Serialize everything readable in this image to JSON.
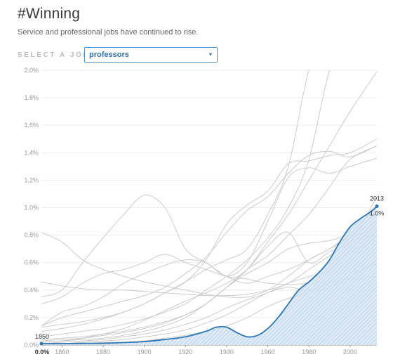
{
  "page": {
    "title": "#Winning",
    "subtitle": "Service and professional jobs have continued to rise."
  },
  "selector": {
    "label": "SELECT A JOB:",
    "value": "professors",
    "caret": "▾"
  },
  "colors": {
    "highlight": "#2f76b3",
    "highlight_fill": "#2f76b3",
    "background_lines": "#cccccc",
    "grid": "#eeeeee"
  },
  "chart_data": {
    "type": "line",
    "ylim": [
      0,
      2.0
    ],
    "xlim": [
      1850,
      2013
    ],
    "y_ticks": [
      "0.0%",
      "0.2%",
      "0.4%",
      "0.6%",
      "0.8%",
      "1.0%",
      "1.2%",
      "1.4%",
      "1.6%",
      "1.8%",
      "2.0%"
    ],
    "x_ticks": [
      "1860",
      "1880",
      "1900",
      "1920",
      "1940",
      "1960",
      "1980",
      "2000"
    ],
    "grid": true,
    "highlight": {
      "name": "professors",
      "x": [
        1850,
        1860,
        1870,
        1880,
        1890,
        1900,
        1910,
        1920,
        1930,
        1935,
        1940,
        1945,
        1950,
        1955,
        1960,
        1965,
        1970,
        1975,
        1980,
        1985,
        1990,
        1995,
        2000,
        2005,
        2010,
        2013
      ],
      "y": [
        0.01,
        0.01,
        0.012,
        0.013,
        0.018,
        0.025,
        0.04,
        0.06,
        0.1,
        0.13,
        0.13,
        0.09,
        0.06,
        0.07,
        0.12,
        0.2,
        0.3,
        0.4,
        0.46,
        0.53,
        0.62,
        0.75,
        0.86,
        0.92,
        0.97,
        1.01
      ],
      "start_label": "1850",
      "start_value_label": "0.0%",
      "end_label": "2013",
      "end_value_label": "1.0%"
    },
    "background_series": [
      {
        "x": [
          1850,
          1860,
          1870,
          1880,
          1890,
          1900,
          1910,
          1920,
          1930,
          1940,
          1950,
          1960,
          1970,
          1980,
          1990,
          2000,
          2013
        ],
        "y": [
          0.82,
          0.75,
          0.62,
          0.55,
          0.5,
          0.46,
          0.43,
          0.4,
          0.37,
          0.35,
          0.35,
          0.4,
          0.5,
          0.62,
          0.7,
          0.8,
          0.9
        ]
      },
      {
        "x": [
          1850,
          1860,
          1870,
          1880,
          1890,
          1900,
          1910,
          1920,
          1930,
          1940,
          1950,
          1960,
          1970,
          1980,
          1990,
          2000,
          2013
        ],
        "y": [
          0.46,
          0.43,
          0.41,
          0.4,
          0.4,
          0.39,
          0.38,
          0.37,
          0.36,
          0.36,
          0.37,
          0.4,
          0.45,
          0.55,
          0.65,
          0.75,
          0.8
        ]
      },
      {
        "x": [
          1850,
          1860,
          1870,
          1880,
          1890,
          1900,
          1910,
          1920,
          1930,
          1940,
          1950,
          1960,
          1970,
          1980,
          1990,
          2000,
          2013
        ],
        "y": [
          0.35,
          0.4,
          0.6,
          0.78,
          0.95,
          1.09,
          1.0,
          0.7,
          0.6,
          0.5,
          0.45,
          0.5,
          0.55,
          0.62,
          0.7,
          0.78,
          0.85
        ]
      },
      {
        "x": [
          1850,
          1860,
          1870,
          1880,
          1890,
          1900,
          1910,
          1920,
          1930,
          1940,
          1950,
          1960,
          1970,
          1980,
          1990,
          2000,
          2013
        ],
        "y": [
          0.14,
          0.24,
          0.28,
          0.35,
          0.45,
          0.52,
          0.58,
          0.62,
          0.6,
          0.5,
          0.6,
          0.9,
          1.22,
          1.29,
          1.25,
          1.3,
          1.36
        ]
      },
      {
        "x": [
          1850,
          1860,
          1870,
          1880,
          1890,
          1900,
          1910,
          1920,
          1930,
          1940,
          1950,
          1960,
          1970,
          1980,
          1990,
          2000,
          2013
        ],
        "y": [
          0.14,
          0.2,
          0.24,
          0.28,
          0.32,
          0.36,
          0.42,
          0.52,
          0.64,
          0.82,
          0.98,
          1.08,
          1.25,
          1.38,
          1.41,
          1.37,
          1.45
        ]
      },
      {
        "x": [
          1850,
          1860,
          1870,
          1880,
          1890,
          1900,
          1910,
          1920,
          1930,
          1940,
          1950,
          1960,
          1970,
          1980,
          1990,
          2000,
          2013
        ],
        "y": [
          0.1,
          0.12,
          0.15,
          0.19,
          0.24,
          0.3,
          0.38,
          0.46,
          0.62,
          0.88,
          1.02,
          1.12,
          1.32,
          1.34,
          1.38,
          1.4,
          1.5
        ]
      },
      {
        "x": [
          1850,
          1860,
          1870,
          1880,
          1890,
          1900,
          1910,
          1920,
          1930,
          1940,
          1950,
          1960,
          1970,
          1980,
          1990,
          2000,
          2013
        ],
        "y": [
          0.13,
          0.15,
          0.17,
          0.2,
          0.24,
          0.3,
          0.38,
          0.46,
          0.55,
          0.62,
          0.7,
          0.95,
          1.3,
          2.0,
          2.3,
          2.3,
          2.3
        ]
      },
      {
        "x": [
          1850,
          1860,
          1870,
          1880,
          1890,
          1900,
          1910,
          1920,
          1930,
          1940,
          1950,
          1960,
          1970,
          1980,
          1990,
          2000,
          2013
        ],
        "y": [
          0.06,
          0.08,
          0.1,
          0.12,
          0.15,
          0.19,
          0.24,
          0.3,
          0.4,
          0.5,
          0.62,
          0.78,
          1.0,
          1.35,
          2.0,
          2.3,
          2.3
        ]
      },
      {
        "x": [
          1850,
          1860,
          1870,
          1880,
          1890,
          1900,
          1910,
          1920,
          1930,
          1940,
          1950,
          1960,
          1970,
          1980,
          1990,
          2000,
          2013
        ],
        "y": [
          0.04,
          0.05,
          0.06,
          0.08,
          0.1,
          0.13,
          0.17,
          0.22,
          0.3,
          0.42,
          0.55,
          0.75,
          0.95,
          1.2,
          1.45,
          1.7,
          1.99
        ]
      },
      {
        "x": [
          1850,
          1860,
          1870,
          1880,
          1890,
          1900,
          1910,
          1920,
          1930,
          1940,
          1950,
          1960,
          1970,
          1980,
          1990,
          2000,
          2013
        ],
        "y": [
          0.03,
          0.04,
          0.05,
          0.07,
          0.09,
          0.12,
          0.16,
          0.22,
          0.3,
          0.42,
          0.55,
          0.65,
          0.8,
          0.95,
          1.15,
          1.35,
          1.45
        ]
      },
      {
        "x": [
          1850,
          1860,
          1870,
          1880,
          1890,
          1900,
          1910,
          1920,
          1930,
          1940,
          1950,
          1960,
          1970,
          1980,
          1990,
          2000,
          2013
        ],
        "y": [
          0.02,
          0.03,
          0.04,
          0.05,
          0.07,
          0.1,
          0.14,
          0.2,
          0.3,
          0.42,
          0.52,
          0.6,
          0.7,
          0.74,
          0.76,
          0.8,
          0.8
        ]
      },
      {
        "x": [
          1850,
          1860,
          1870,
          1880,
          1890,
          1900,
          1910,
          1920,
          1930,
          1940,
          1950,
          1960,
          1970,
          1980,
          1990,
          2000,
          2013
        ],
        "y": [
          0.02,
          0.03,
          0.05,
          0.08,
          0.12,
          0.18,
          0.25,
          0.32,
          0.38,
          0.45,
          0.55,
          0.72,
          0.82,
          0.6,
          0.68,
          0.75,
          1.08
        ]
      },
      {
        "x": [
          1850,
          1860,
          1870,
          1880,
          1890,
          1900,
          1910,
          1920,
          1930,
          1940,
          1950,
          1960,
          1970,
          1980,
          1990,
          2000,
          2013
        ],
        "y": [
          0.01,
          0.02,
          0.03,
          0.04,
          0.06,
          0.08,
          0.11,
          0.15,
          0.2,
          0.27,
          0.33,
          0.38,
          0.45,
          0.5,
          0.55,
          0.68,
          0.76
        ]
      },
      {
        "x": [
          1850,
          1860,
          1870,
          1880,
          1890,
          1900,
          1910,
          1920,
          1930,
          1940,
          1950,
          1960,
          1970,
          1980,
          1990,
          2000,
          2013
        ],
        "y": [
          0.01,
          0.01,
          0.02,
          0.03,
          0.04,
          0.06,
          0.08,
          0.11,
          0.16,
          0.22,
          0.3,
          0.38,
          0.42,
          0.4,
          0.45,
          0.5,
          0.62
        ]
      },
      {
        "x": [
          1850,
          1860,
          1870,
          1880,
          1890,
          1900,
          1910,
          1920,
          1930,
          1940,
          1950,
          1960,
          1970,
          1980,
          1990,
          2000,
          2013
        ],
        "y": [
          0.01,
          0.01,
          0.01,
          0.02,
          0.02,
          0.03,
          0.05,
          0.07,
          0.1,
          0.14,
          0.2,
          0.28,
          0.34,
          0.38,
          0.42,
          0.5,
          0.6
        ]
      },
      {
        "x": [
          1850,
          1860,
          1870,
          1880,
          1890,
          1900,
          1910,
          1920,
          1930,
          1940,
          1950,
          1960,
          1970,
          1980,
          1990,
          2000,
          2013
        ],
        "y": [
          0.3,
          0.35,
          0.45,
          0.52,
          0.55,
          0.6,
          0.66,
          0.6,
          0.55,
          0.5,
          0.48,
          0.45,
          0.44,
          0.45,
          0.46,
          0.48,
          0.5
        ]
      }
    ]
  }
}
